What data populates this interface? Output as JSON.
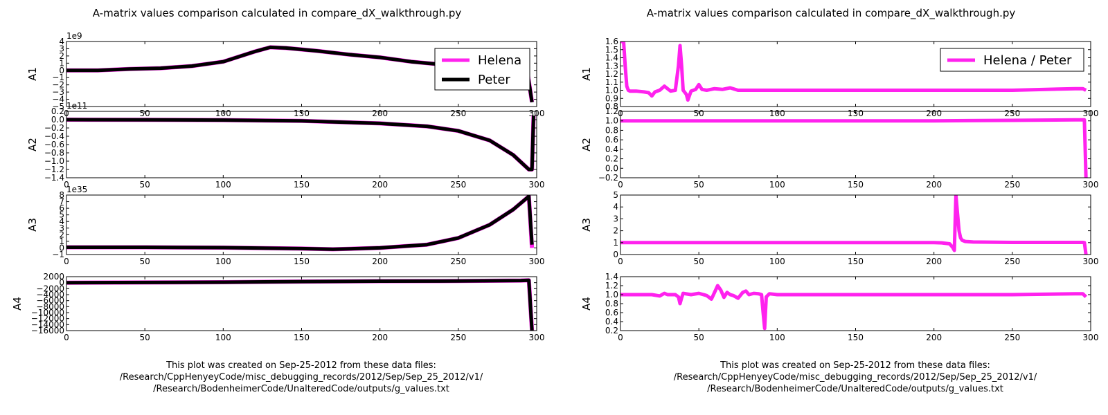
{
  "chart_data": [
    {
      "type": "line",
      "title": "A-matrix values comparison calculated in compare_dX_walkthrough.py",
      "footer": [
        "This plot was created on Sep-25-2012 from these data files:",
        "/Research/CppHenyeyCode/misc_debugging_records/2012/Sep/Sep_25_2012/v1/",
        "/Research/BodenheimerCode/UnalteredCode/outputs/g_values.txt"
      ],
      "legend": [
        "Helena",
        "Peter"
      ],
      "legend_position": "top-right (in A1 panel)",
      "colors": {
        "Helena": "#ff22ee",
        "Peter": "#000000"
      },
      "subplots": [
        {
          "ylabel": "A1",
          "offset_label": "1e9",
          "xlim": [
            0,
            300
          ],
          "ylim": [
            -5,
            4
          ],
          "xticks": [
            "0",
            "50",
            "100",
            "150",
            "200",
            "250",
            "300"
          ],
          "yticks": [
            "4",
            "3",
            "2",
            "1",
            "0",
            "−1",
            "−2",
            "−3",
            "−4",
            "−5"
          ],
          "yvals": [
            4,
            3,
            2,
            1,
            0,
            -1,
            -2,
            -3,
            -4,
            -5
          ],
          "series": [
            {
              "name": "Helena",
              "x": [
                0,
                20,
                40,
                60,
                80,
                100,
                120,
                130,
                140,
                160,
                180,
                200,
                220,
                240,
                260,
                280,
                294,
                297
              ],
              "y": [
                0,
                0,
                0.2,
                0.3,
                0.6,
                1.2,
                2.6,
                3.2,
                3.1,
                2.7,
                2.2,
                1.8,
                1.2,
                0.8,
                0.4,
                0.1,
                -0.1,
                -4.4
              ]
            },
            {
              "name": "Peter",
              "x": [
                0,
                20,
                40,
                60,
                80,
                100,
                120,
                130,
                140,
                160,
                180,
                200,
                220,
                240,
                260,
                280,
                294,
                297
              ],
              "y": [
                0,
                0,
                0.2,
                0.3,
                0.6,
                1.2,
                2.6,
                3.2,
                3.1,
                2.7,
                2.2,
                1.8,
                1.2,
                0.8,
                0.4,
                0.1,
                -0.1,
                -4.4
              ]
            }
          ]
        },
        {
          "ylabel": "A2",
          "offset_label": "1e11",
          "xlim": [
            0,
            300
          ],
          "ylim": [
            -1.4,
            0.2
          ],
          "xticks": [
            "0",
            "50",
            "100",
            "150",
            "200",
            "250",
            "300"
          ],
          "yticks": [
            "0.2",
            "0.0",
            "−0.2",
            "−0.4",
            "−0.6",
            "−0.8",
            "−1.0",
            "−1.2",
            "−1.4"
          ],
          "yvals": [
            0.2,
            0,
            -0.2,
            -0.4,
            -0.6,
            -0.8,
            -1.0,
            -1.2,
            -1.4
          ],
          "series": [
            {
              "name": "Helena",
              "x": [
                0,
                50,
                100,
                150,
                200,
                230,
                250,
                270,
                285,
                295,
                297,
                298
              ],
              "y": [
                0.0,
                -0.005,
                -0.01,
                -0.03,
                -0.09,
                -0.16,
                -0.27,
                -0.5,
                -0.85,
                -1.2,
                -1.2,
                0.1
              ]
            },
            {
              "name": "Peter",
              "x": [
                0,
                50,
                100,
                150,
                200,
                230,
                250,
                270,
                285,
                295,
                297,
                298
              ],
              "y": [
                0.0,
                -0.005,
                -0.01,
                -0.03,
                -0.09,
                -0.16,
                -0.27,
                -0.5,
                -0.85,
                -1.2,
                -1.2,
                0.1
              ]
            }
          ]
        },
        {
          "ylabel": "A3",
          "offset_label": "1e35",
          "xlim": [
            0,
            300
          ],
          "ylim": [
            -1,
            8
          ],
          "xticks": [
            "0",
            "50",
            "100",
            "150",
            "200",
            "250",
            "300"
          ],
          "yticks": [
            "8",
            "7",
            "6",
            "5",
            "4",
            "3",
            "2",
            "1",
            "0",
            "−1"
          ],
          "yvals": [
            8,
            7,
            6,
            5,
            4,
            3,
            2,
            1,
            0,
            -1
          ],
          "series": [
            {
              "name": "Helena",
              "x": [
                0,
                50,
                100,
                150,
                170,
                200,
                230,
                250,
                270,
                285,
                295,
                297
              ],
              "y": [
                0.1,
                0.1,
                0.05,
                -0.1,
                -0.2,
                0.0,
                0.5,
                1.5,
                3.5,
                5.8,
                7.8,
                0.0
              ]
            },
            {
              "name": "Peter",
              "x": [
                0,
                50,
                100,
                150,
                170,
                200,
                230,
                250,
                270,
                285,
                295,
                297
              ],
              "y": [
                0.1,
                0.1,
                0.05,
                -0.1,
                -0.2,
                0.0,
                0.5,
                1.5,
                3.5,
                5.8,
                7.8,
                0.5
              ]
            }
          ]
        },
        {
          "ylabel": "A4",
          "xlim": [
            0,
            300
          ],
          "ylim": [
            -16000,
            2000
          ],
          "xticks": [
            "0",
            "50",
            "100",
            "150",
            "200",
            "250",
            "300"
          ],
          "yticks": [
            "2000",
            "0",
            "−2000",
            "−4000",
            "−6000",
            "−8000",
            "−10000",
            "−12000",
            "−14000",
            "−16000"
          ],
          "yvals": [
            2000,
            0,
            -2000,
            -4000,
            -6000,
            -8000,
            -10000,
            -12000,
            -14000,
            -16000
          ],
          "series": [
            {
              "name": "Helena",
              "x": [
                0,
                50,
                100,
                150,
                200,
                250,
                290,
                295,
                297,
                298
              ],
              "y": [
                0,
                50,
                150,
                350,
                500,
                550,
                700,
                800,
                -16000,
                -16000
              ]
            },
            {
              "name": "Peter",
              "x": [
                0,
                50,
                100,
                150,
                200,
                250,
                290,
                295,
                297,
                298
              ],
              "y": [
                0,
                50,
                150,
                350,
                500,
                550,
                700,
                800,
                -16000,
                -16000
              ]
            }
          ]
        }
      ]
    },
    {
      "type": "line",
      "title": "A-matrix values comparison calculated in compare_dX_walkthrough.py",
      "footer": [
        "This plot was created on Sep-25-2012 from these data files:",
        "/Research/CppHenyeyCode/misc_debugging_records/2012/Sep/Sep_25_2012/v1/",
        "/Research/BodenheimerCode/UnalteredCode/outputs/g_values.txt"
      ],
      "legend": [
        "Helena / Peter"
      ],
      "legend_position": "top-right (in A1 panel)",
      "colors": {
        "Helena / Peter": "#ff22ee"
      },
      "subplots": [
        {
          "ylabel": "A1",
          "xlim": [
            0,
            300
          ],
          "ylim": [
            0.8,
            1.6
          ],
          "xticks": [
            "0",
            "50",
            "100",
            "150",
            "200",
            "250",
            "300"
          ],
          "yticks": [
            "1.6",
            "1.5",
            "1.4",
            "1.3",
            "1.2",
            "1.1",
            "1.0",
            "0.9",
            "0.8"
          ],
          "yvals": [
            1.6,
            1.5,
            1.4,
            1.3,
            1.2,
            1.1,
            1.0,
            0.9,
            0.8
          ],
          "series": [
            {
              "name": "Helena / Peter",
              "x": [
                0,
                2,
                3,
                4,
                5,
                6,
                10,
                15,
                18,
                20,
                22,
                25,
                28,
                30,
                32,
                35,
                37,
                38,
                39,
                40,
                42,
                43,
                45,
                48,
                50,
                52,
                55,
                60,
                65,
                70,
                75,
                80,
                100,
                150,
                200,
                250,
                290,
                295,
                297
              ],
              "y": [
                1.6,
                1.6,
                1.3,
                1.05,
                1.0,
                0.99,
                0.99,
                0.98,
                0.97,
                0.93,
                0.98,
                1.0,
                1.05,
                1.02,
                0.99,
                1.0,
                1.3,
                1.55,
                1.3,
                1.0,
                0.95,
                0.88,
                0.99,
                1.01,
                1.07,
                1.01,
                1.0,
                1.02,
                1.01,
                1.03,
                1.0,
                1.0,
                1.0,
                1.0,
                1.0,
                1.0,
                1.02,
                1.02,
                1.0
              ]
            }
          ]
        },
        {
          "ylabel": "A2",
          "xlim": [
            0,
            300
          ],
          "ylim": [
            -0.2,
            1.2
          ],
          "xticks": [
            "0",
            "50",
            "100",
            "150",
            "200",
            "250",
            "300"
          ],
          "yticks": [
            "1.2",
            "1.0",
            "0.8",
            "0.6",
            "0.4",
            "0.2",
            "0.0",
            "−0.2"
          ],
          "yvals": [
            1.2,
            1.0,
            0.8,
            0.6,
            0.4,
            0.2,
            0,
            -0.2
          ],
          "series": [
            {
              "name": "Helena / Peter",
              "x": [
                0,
                50,
                100,
                150,
                200,
                250,
                290,
                295,
                296,
                297
              ],
              "y": [
                1.0,
                1.0,
                1.0,
                1.0,
                1.0,
                1.01,
                1.02,
                1.02,
                1.02,
                -0.2
              ]
            }
          ]
        },
        {
          "ylabel": "A3",
          "xlim": [
            0,
            300
          ],
          "ylim": [
            0,
            5
          ],
          "xticks": [
            "0",
            "50",
            "100",
            "150",
            "200",
            "250",
            "300"
          ],
          "yticks": [
            "5",
            "4",
            "3",
            "2",
            "1",
            "0"
          ],
          "yvals": [
            5,
            4,
            3,
            2,
            1,
            0
          ],
          "series": [
            {
              "name": "Helena / Peter",
              "x": [
                0,
                50,
                100,
                150,
                200,
                205,
                210,
                212,
                213,
                214,
                215,
                216,
                217,
                218,
                220,
                225,
                250,
                295,
                296,
                297
              ],
              "y": [
                1.0,
                1.0,
                1.0,
                1.0,
                1.0,
                0.98,
                0.9,
                0.6,
                0.35,
                5.0,
                3.5,
                2.0,
                1.4,
                1.2,
                1.1,
                1.05,
                1.02,
                1.02,
                1.0,
                0.0
              ]
            }
          ]
        },
        {
          "ylabel": "A4",
          "xlim": [
            0,
            300
          ],
          "ylim": [
            0.2,
            1.4
          ],
          "xticks": [
            "0",
            "50",
            "100",
            "150",
            "200",
            "250",
            "300"
          ],
          "yticks": [
            "1.4",
            "1.2",
            "1.0",
            "0.8",
            "0.6",
            "0.4",
            "0.2"
          ],
          "yvals": [
            1.4,
            1.2,
            1.0,
            0.8,
            0.6,
            0.4,
            0.2
          ],
          "series": [
            {
              "name": "Helena / Peter",
              "x": [
                0,
                20,
                25,
                28,
                30,
                35,
                37,
                38,
                39,
                40,
                45,
                50,
                55,
                58,
                60,
                62,
                64,
                66,
                68,
                70,
                72,
                75,
                78,
                80,
                82,
                85,
                88,
                90,
                91,
                92,
                93,
                95,
                100,
                150,
                200,
                250,
                290,
                295,
                297
              ],
              "y": [
                1.0,
                1.0,
                0.97,
                1.03,
                1.0,
                1.0,
                0.95,
                0.8,
                0.93,
                1.03,
                1.0,
                1.03,
                0.98,
                0.9,
                1.05,
                1.2,
                1.1,
                0.94,
                1.05,
                1.0,
                0.98,
                0.92,
                1.05,
                1.08,
                1.0,
                1.03,
                1.02,
                1.0,
                0.6,
                0.25,
                0.95,
                1.02,
                1.0,
                1.0,
                1.0,
                1.0,
                1.02,
                1.02,
                0.95
              ]
            }
          ]
        }
      ]
    }
  ]
}
